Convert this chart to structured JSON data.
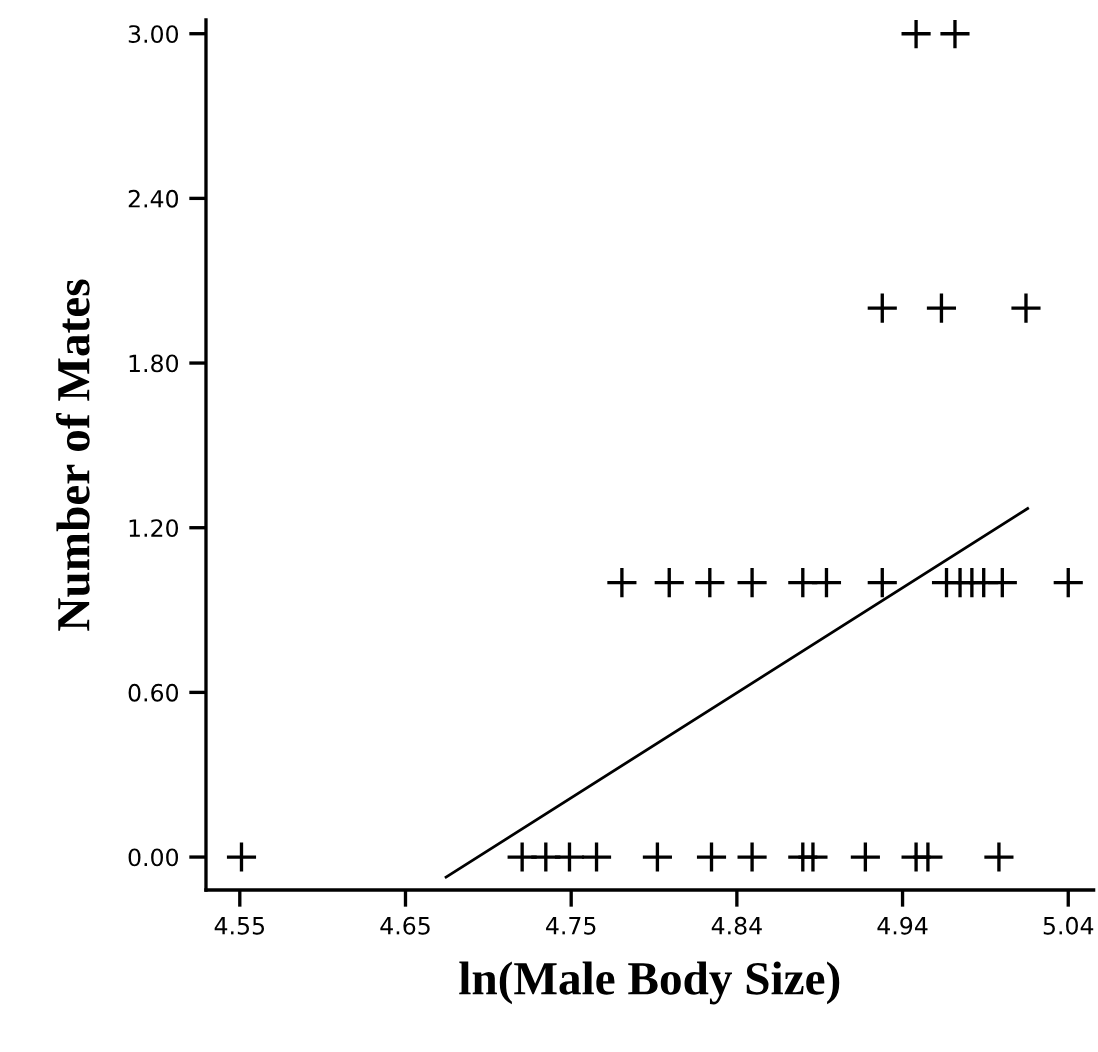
{
  "chart_data": {
    "type": "scatter",
    "xlabel": "ln(Male Body Size)",
    "ylabel": "Number of Mates",
    "xlim": [
      4.53,
      5.055
    ],
    "ylim": [
      -0.12,
      3.05
    ],
    "xticks": [
      {
        "value": 4.55,
        "label": "4.55"
      },
      {
        "value": 4.648,
        "label": "4.65"
      },
      {
        "value": 4.746,
        "label": "4.75"
      },
      {
        "value": 4.844,
        "label": "4.84"
      },
      {
        "value": 4.942,
        "label": "4.94"
      },
      {
        "value": 5.04,
        "label": "5.04"
      }
    ],
    "yticks": [
      {
        "value": 0,
        "label": "0.00"
      },
      {
        "value": 0.6,
        "label": "0.60"
      },
      {
        "value": 1.2,
        "label": "1.20"
      },
      {
        "value": 1.8,
        "label": "1.80"
      },
      {
        "value": 2.4,
        "label": "2.40"
      },
      {
        "value": 3.0,
        "label": "3.00"
      }
    ],
    "grid": false,
    "legend": false,
    "series": [
      {
        "color": "#000000",
        "marker": "cross",
        "x": [
          4.551,
          4.717,
          4.731,
          4.745,
          4.761,
          4.797,
          4.829,
          4.853,
          4.883,
          4.889,
          4.92,
          4.95,
          4.957,
          4.999,
          4.776,
          4.804,
          4.828,
          4.853,
          4.883,
          4.897,
          4.93,
          4.968,
          4.976,
          4.983,
          4.99,
          5.001,
          5.04,
          4.93,
          4.965,
          5.015,
          4.95,
          4.973
        ],
        "values": [
          0,
          0,
          0,
          0,
          0,
          0,
          0,
          0,
          0,
          0,
          0,
          0,
          0,
          0,
          1,
          1,
          1,
          1,
          1,
          1,
          1,
          1,
          1,
          1,
          1,
          1,
          1,
          2,
          2,
          2,
          3,
          3
        ]
      },
      {
        "type": "line",
        "color": "#000000",
        "line_style": "solid",
        "marker": "none",
        "x": [
          4.672,
          5.016
        ],
        "values": [
          -0.073,
          1.27
        ]
      }
    ]
  }
}
